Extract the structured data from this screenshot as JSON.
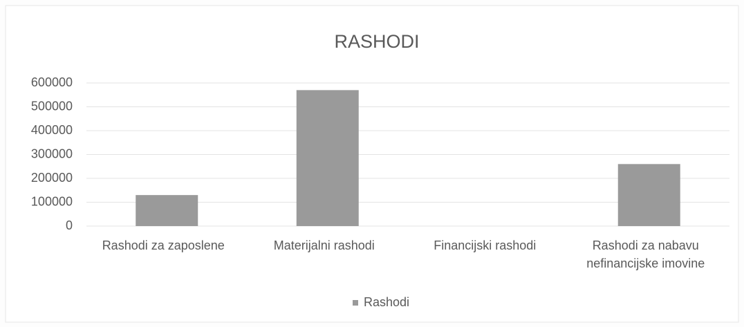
{
  "chart_data": {
    "type": "bar",
    "title": "RASHODI",
    "categories": [
      "Rashodi za zaposlene",
      "Materijalni rashodi",
      "Financijski rashodi",
      "Rashodi za nabavu nefinancijske imovine"
    ],
    "series": [
      {
        "name": "Rashodi",
        "color": "#9a9a9a",
        "values": [
          130000,
          570000,
          0,
          260000
        ]
      }
    ],
    "ylim": [
      0,
      600000
    ],
    "yticks": [
      0,
      100000,
      200000,
      300000,
      400000,
      500000,
      600000
    ],
    "grid": true,
    "legend": "bottom"
  }
}
